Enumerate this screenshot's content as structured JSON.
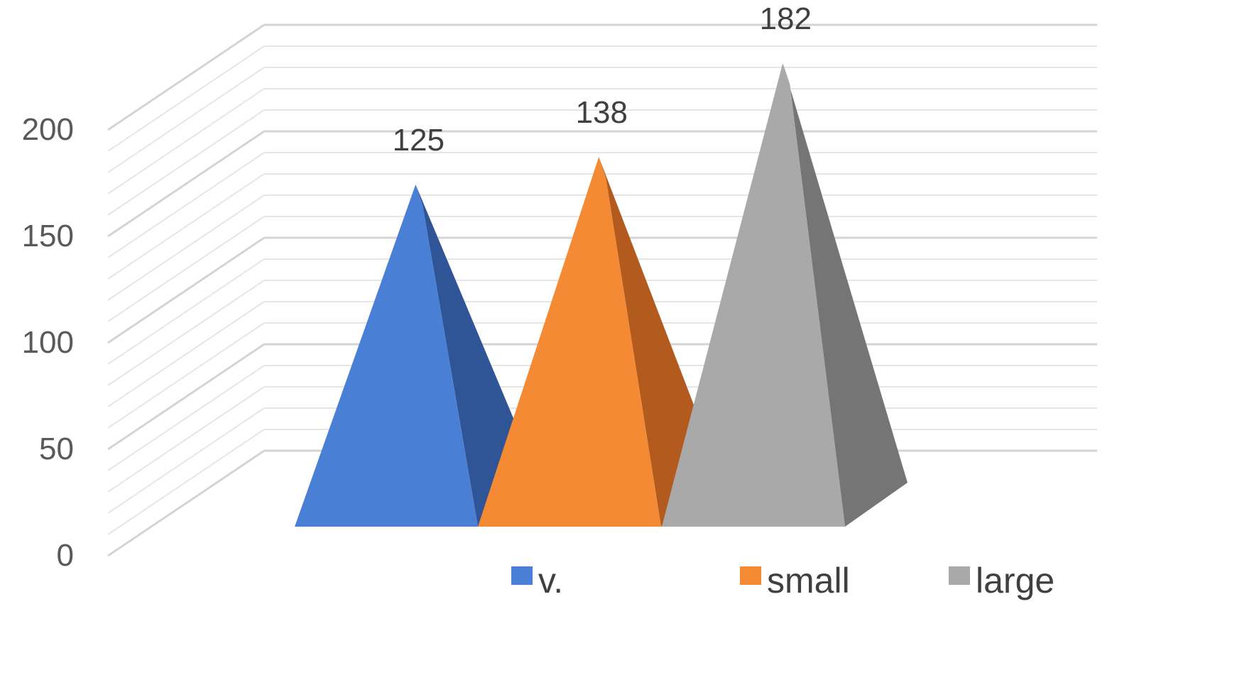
{
  "chart_data": {
    "type": "bar",
    "style": "3d-pyramid",
    "categories": [
      "v.",
      "small",
      "large"
    ],
    "values": [
      125,
      138,
      182
    ],
    "colors": [
      "#4a7fd6",
      "#f48a33",
      "#a9a9a9"
    ],
    "shade_colors": [
      "#2f5597",
      "#b35a1e",
      "#757575"
    ],
    "ylim": [
      0,
      200
    ],
    "ticks": [
      {
        "value": 0,
        "label": "0"
      },
      {
        "value": 50,
        "label": "50"
      },
      {
        "value": 100,
        "label": "100"
      },
      {
        "value": 150,
        "label": "150"
      },
      {
        "value": 200,
        "label": "200"
      }
    ],
    "data_labels": [
      "125",
      "138",
      "182"
    ],
    "legend": [
      {
        "label": "v.",
        "color": "#4a7fd6"
      },
      {
        "label": "small",
        "color": "#f48a33"
      },
      {
        "label": "large",
        "color": "#a9a9a9"
      }
    ],
    "legend_position": "bottom",
    "grid": true,
    "title": "",
    "xlabel": "",
    "ylabel": ""
  }
}
